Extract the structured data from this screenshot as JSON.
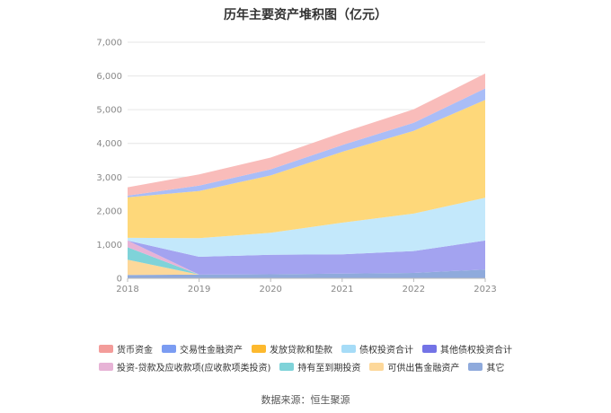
{
  "chart_data": {
    "type": "area",
    "title": "历年主要资产堆积图（亿元）",
    "x": [
      "2018",
      "2019",
      "2020",
      "2021",
      "2022",
      "2023"
    ],
    "y_ticks": [
      "0",
      "1,000",
      "2,000",
      "3,000",
      "4,000",
      "5,000",
      "6,000",
      "7,000"
    ],
    "ylim": [
      0,
      7000
    ],
    "stacked": true,
    "grid": true,
    "legend_position": "bottom",
    "series": [
      {
        "name": "其它",
        "color": "#8faadc",
        "values": [
          100,
          110,
          120,
          140,
          160,
          260
        ]
      },
      {
        "name": "可供出售金融资产",
        "color": "#fdd89a",
        "values": [
          450,
          0,
          0,
          0,
          0,
          0
        ]
      },
      {
        "name": "持有至到期投资",
        "color": "#7fd3d9",
        "values": [
          370,
          0,
          0,
          0,
          0,
          0
        ]
      },
      {
        "name": "投资-贷款及应收款项(应收款项类投资)",
        "color": "#e7b3d6",
        "values": [
          200,
          0,
          0,
          0,
          0,
          0
        ]
      },
      {
        "name": "其他债权投资合计",
        "color": "#a3a3f0",
        "values": [
          0,
          530,
          580,
          570,
          650,
          860
        ]
      },
      {
        "name": "债权投资合计",
        "color": "#c3e8fb",
        "values": [
          80,
          550,
          650,
          940,
          1110,
          1270
        ]
      },
      {
        "name": "发放贷款和垫款",
        "color": "#fed87a",
        "values": [
          1200,
          1400,
          1700,
          2100,
          2450,
          2900
        ]
      },
      {
        "name": "交易性金融资产",
        "color": "#a9bdf7",
        "values": [
          50,
          160,
          180,
          200,
          240,
          340
        ]
      },
      {
        "name": "货币资金",
        "color": "#f9bcba",
        "values": [
          250,
          330,
          350,
          370,
          400,
          440
        ]
      }
    ]
  },
  "legend": {
    "rows": [
      [
        {
          "label": "货币资金",
          "color": "#f39c9a"
        },
        {
          "label": "交易性金融资产",
          "color": "#7b9cf2"
        },
        {
          "label": "发放贷款和垫款",
          "color": "#fdb92e"
        },
        {
          "label": "债权投资合计",
          "color": "#a6dcf7"
        },
        {
          "label": "其他债权投资合计",
          "color": "#7373e6"
        }
      ],
      [
        {
          "label": "投资-贷款及应收款项(应收款项类投资)",
          "color": "#e7b3d6"
        },
        {
          "label": "持有至到期投资",
          "color": "#7fd3d9"
        },
        {
          "label": "可供出售金融资产",
          "color": "#fdd89a"
        },
        {
          "label": "其它",
          "color": "#8faadc"
        }
      ]
    ]
  },
  "source_text": "数据来源：恒生聚源"
}
